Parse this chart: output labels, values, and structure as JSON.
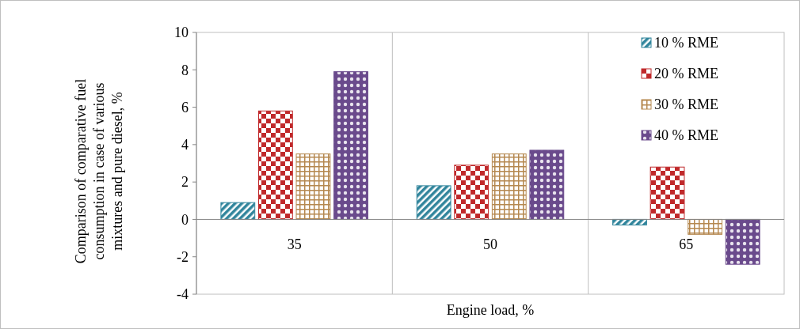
{
  "chart_data": {
    "type": "bar",
    "xlabel": "Engine load, %",
    "ylabel": "Comparison of comparative fuel consumption in case of various mixtures and pure diesel, %",
    "categories": [
      "35",
      "50",
      "65"
    ],
    "series": [
      {
        "name": "10 % RME",
        "color": "#31859c",
        "values": [
          0.9,
          1.8,
          -0.3
        ]
      },
      {
        "name": "20 % RME",
        "color": "#c0292b",
        "values": [
          5.8,
          2.9,
          2.8
        ]
      },
      {
        "name": "30 % RME",
        "color": "#b5884f",
        "values": [
          3.5,
          3.5,
          -0.8
        ]
      },
      {
        "name": "40 % RME",
        "color": "#6a4a8c",
        "values": [
          7.9,
          3.7,
          -2.4
        ]
      }
    ],
    "ylim": [
      -4,
      10
    ],
    "yticks": [
      -4,
      -2,
      0,
      2,
      4,
      6,
      8,
      10
    ],
    "grid": "x",
    "legend": "top right"
  }
}
